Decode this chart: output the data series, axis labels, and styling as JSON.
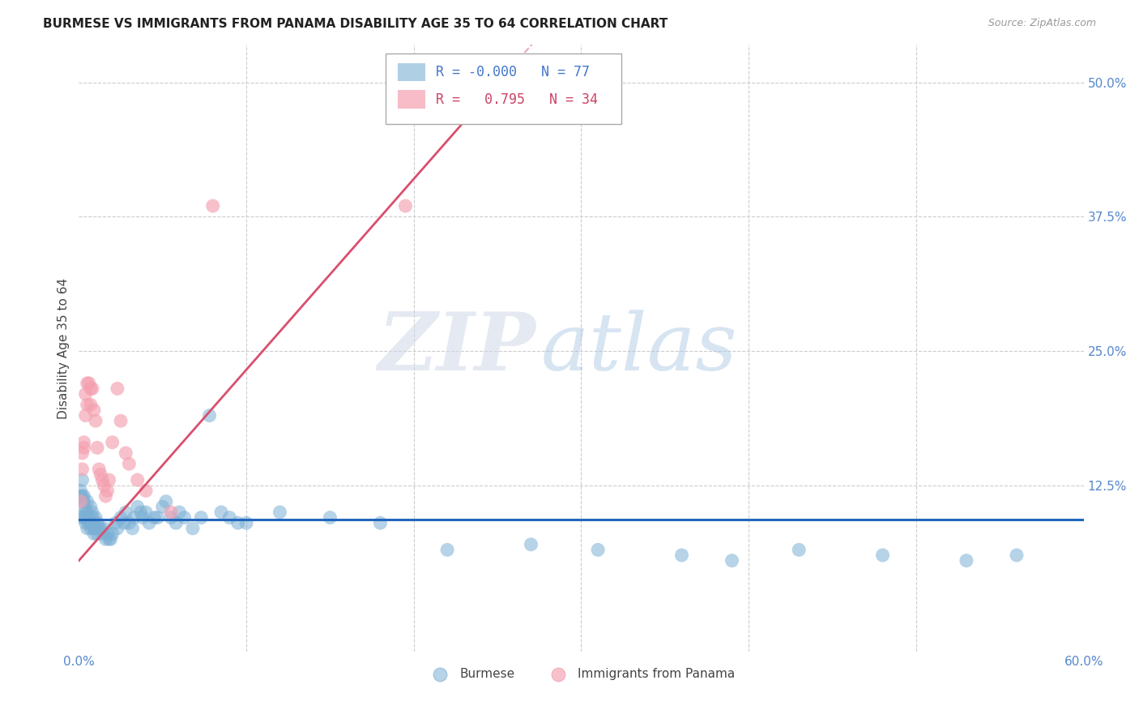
{
  "title": "BURMESE VS IMMIGRANTS FROM PANAMA DISABILITY AGE 35 TO 64 CORRELATION CHART",
  "source": "Source: ZipAtlas.com",
  "ylabel": "Disability Age 35 to 64",
  "xlim": [
    0.0,
    0.6
  ],
  "ylim": [
    -0.03,
    0.535
  ],
  "bg_color": "#ffffff",
  "blue_color": "#7bafd4",
  "pink_color": "#f4a0b0",
  "blue_line_color": "#2266bb",
  "pink_line_color": "#d94f6e",
  "R_blue": "-0.000",
  "N_blue": "77",
  "R_pink": "0.795",
  "N_pink": "34",
  "watermark_zip": "ZIP",
  "watermark_atlas": "atlas",
  "legend_blue_label": "Burmese",
  "legend_pink_label": "Immigrants from Panama",
  "blue_scatter_x": [
    0.001,
    0.001,
    0.002,
    0.002,
    0.002,
    0.003,
    0.003,
    0.003,
    0.003,
    0.004,
    0.004,
    0.004,
    0.005,
    0.005,
    0.005,
    0.006,
    0.006,
    0.007,
    0.007,
    0.007,
    0.008,
    0.008,
    0.009,
    0.009,
    0.01,
    0.01,
    0.011,
    0.011,
    0.012,
    0.013,
    0.014,
    0.015,
    0.016,
    0.017,
    0.018,
    0.019,
    0.02,
    0.022,
    0.023,
    0.025,
    0.027,
    0.028,
    0.03,
    0.032,
    0.033,
    0.035,
    0.037,
    0.038,
    0.04,
    0.042,
    0.045,
    0.047,
    0.05,
    0.052,
    0.055,
    0.058,
    0.06,
    0.063,
    0.068,
    0.073,
    0.078,
    0.085,
    0.09,
    0.095,
    0.1,
    0.12,
    0.15,
    0.18,
    0.22,
    0.27,
    0.31,
    0.36,
    0.39,
    0.43,
    0.48,
    0.53,
    0.56
  ],
  "blue_scatter_y": [
    0.115,
    0.12,
    0.13,
    0.115,
    0.095,
    0.115,
    0.105,
    0.11,
    0.095,
    0.1,
    0.09,
    0.095,
    0.11,
    0.1,
    0.085,
    0.095,
    0.09,
    0.105,
    0.09,
    0.085,
    0.1,
    0.095,
    0.085,
    0.08,
    0.095,
    0.085,
    0.09,
    0.08,
    0.085,
    0.085,
    0.08,
    0.085,
    0.075,
    0.08,
    0.075,
    0.075,
    0.08,
    0.09,
    0.085,
    0.095,
    0.09,
    0.1,
    0.09,
    0.085,
    0.095,
    0.105,
    0.1,
    0.095,
    0.1,
    0.09,
    0.095,
    0.095,
    0.105,
    0.11,
    0.095,
    0.09,
    0.1,
    0.095,
    0.085,
    0.095,
    0.19,
    0.1,
    0.095,
    0.09,
    0.09,
    0.1,
    0.095,
    0.09,
    0.065,
    0.07,
    0.065,
    0.06,
    0.055,
    0.065,
    0.06,
    0.055,
    0.06
  ],
  "pink_scatter_x": [
    0.001,
    0.002,
    0.002,
    0.003,
    0.003,
    0.004,
    0.004,
    0.005,
    0.005,
    0.006,
    0.007,
    0.007,
    0.008,
    0.009,
    0.01,
    0.011,
    0.012,
    0.013,
    0.014,
    0.015,
    0.016,
    0.017,
    0.018,
    0.02,
    0.023,
    0.025,
    0.028,
    0.03,
    0.035,
    0.04,
    0.055,
    0.08,
    0.195,
    0.24
  ],
  "pink_scatter_y": [
    0.11,
    0.14,
    0.155,
    0.16,
    0.165,
    0.19,
    0.21,
    0.2,
    0.22,
    0.22,
    0.215,
    0.2,
    0.215,
    0.195,
    0.185,
    0.16,
    0.14,
    0.135,
    0.13,
    0.125,
    0.115,
    0.12,
    0.13,
    0.165,
    0.215,
    0.185,
    0.155,
    0.145,
    0.13,
    0.12,
    0.1,
    0.385,
    0.385,
    0.48
  ],
  "blue_trend_y": 0.093,
  "pink_trend_x0": 0.0,
  "pink_trend_y0": 0.055,
  "pink_trend_x1": 0.245,
  "pink_trend_y1": 0.49
}
